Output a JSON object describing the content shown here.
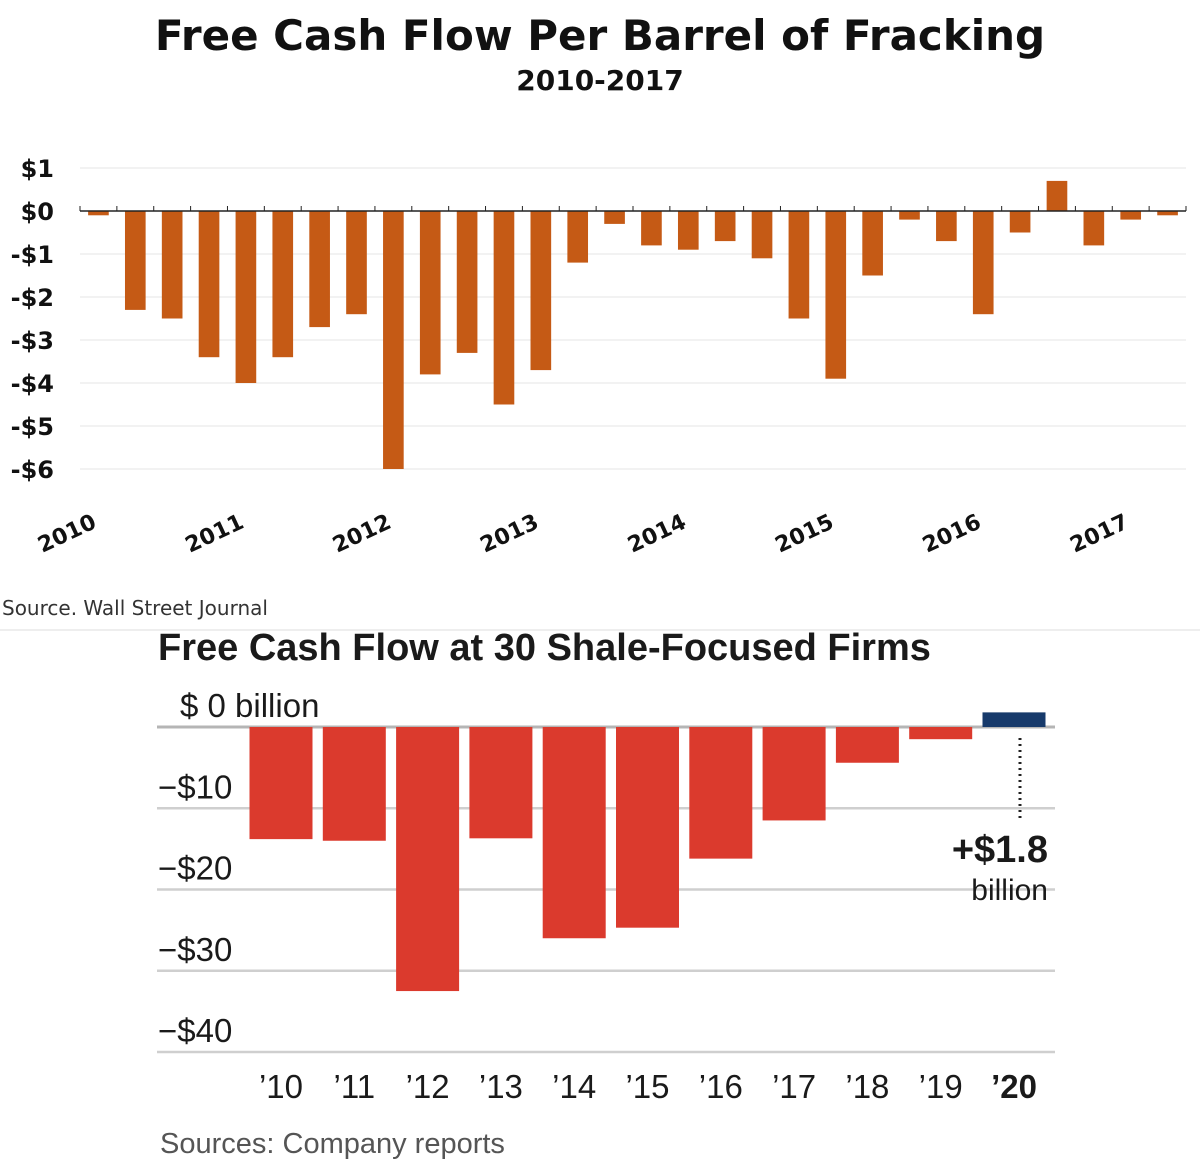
{
  "chart_data": [
    {
      "type": "bar",
      "title": "Free Cash Flow Per Barrel of Fracking",
      "subtitle": "2010-2017",
      "source": "Source. Wall Street Journal",
      "bar_color": "#c55a15",
      "ylim": [
        -6,
        1
      ],
      "yticks": [
        {
          "value": 1,
          "label": "$1"
        },
        {
          "value": 0,
          "label": "$0"
        },
        {
          "value": -1,
          "label": "-$1"
        },
        {
          "value": -2,
          "label": "-$2"
        },
        {
          "value": -3,
          "label": "-$3"
        },
        {
          "value": -4,
          "label": "-$4"
        },
        {
          "value": -5,
          "label": "-$5"
        },
        {
          "value": -6,
          "label": "-$6"
        }
      ],
      "xtick_labels": [
        "2010",
        "2011",
        "2012",
        "2013",
        "2014",
        "2015",
        "2016",
        "2017"
      ],
      "quarters_per_year": 4,
      "values": [
        -0.1,
        -2.3,
        -2.5,
        -3.4,
        -4.0,
        -3.4,
        -2.7,
        -2.4,
        -6.0,
        -3.8,
        -3.3,
        -4.5,
        -3.7,
        -1.2,
        -0.3,
        -0.8,
        -0.9,
        -0.7,
        -1.1,
        -2.5,
        -3.9,
        -1.5,
        -0.2,
        -0.7,
        -2.4,
        -0.5,
        0.7,
        -0.8,
        -0.2,
        -0.1
      ],
      "grid": true
    },
    {
      "type": "bar",
      "title": "Free Cash Flow at 30 Shale-Focused Firms",
      "source": "Sources: Company reports",
      "negative_color": "#db3a2d",
      "positive_color": "#173a6b",
      "ylim": [
        -40,
        2
      ],
      "yticks": [
        {
          "value": 0,
          "label": "$  0 billion"
        },
        {
          "value": -10,
          "label": "−$10"
        },
        {
          "value": -20,
          "label": "−$20"
        },
        {
          "value": -30,
          "label": "−$30"
        },
        {
          "value": -40,
          "label": "−$40"
        }
      ],
      "categories": [
        "’10",
        "’11",
        "’12",
        "’13",
        "’14",
        "’15",
        "’16",
        "’17",
        "’18",
        "’19",
        "’20"
      ],
      "values": [
        -13.8,
        -14.0,
        -32.5,
        -13.7,
        -26.0,
        -24.7,
        -16.2,
        -11.5,
        -4.4,
        -1.5,
        1.8
      ],
      "annotation": {
        "value_label": "+$1.8",
        "unit_label": "billion"
      },
      "grid": true
    }
  ]
}
